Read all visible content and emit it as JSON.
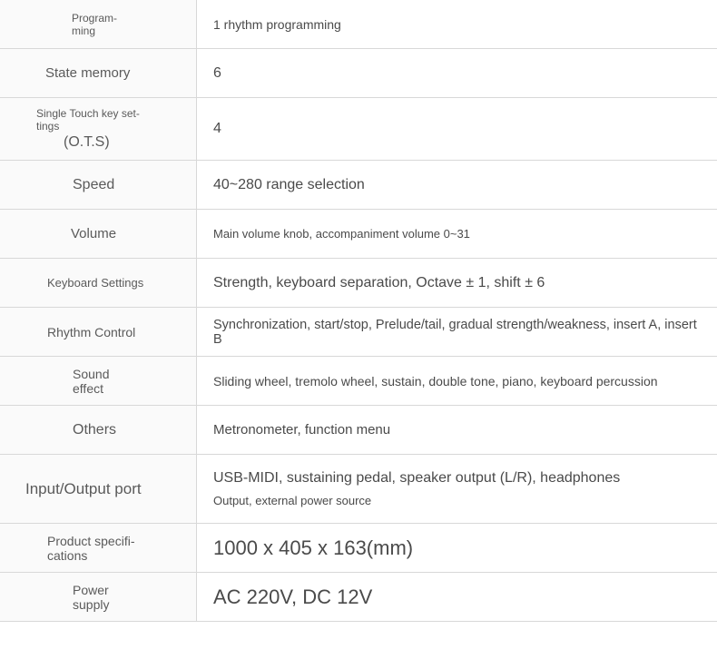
{
  "specs": {
    "programming": {
      "label": "Program-\nming",
      "value": "1 rhythm programming"
    },
    "state_memory": {
      "label": "State memory",
      "value": "6"
    },
    "ots": {
      "label_line1": "Single Touch key set-\ntings",
      "label_line2": "(O.T.S)",
      "value": "4"
    },
    "speed": {
      "label": "Speed",
      "value": "40~280 range selection"
    },
    "volume": {
      "label": "Volume",
      "value": "Main volume knob, accompaniment volume 0~31"
    },
    "keyboard_settings": {
      "label": "Keyboard Settings",
      "value": "Strength, keyboard separation, Octave ± 1, shift ± 6"
    },
    "rhythm_control": {
      "label": "Rhythm Control",
      "value": "Synchronization, start/stop, Prelude/tail, gradual strength/weakness, insert A, insert B"
    },
    "sound_effect": {
      "label": "Sound\neffect",
      "value": "Sliding wheel, tremolo wheel, sustain, double tone, piano, keyboard percussion"
    },
    "others": {
      "label": "Others",
      "value": "Metronometer, function menu"
    },
    "io_port": {
      "label": "Input/Output port",
      "value_line1": "USB-MIDI, sustaining pedal, speaker output  (L/R), headphones",
      "value_line2": "Output, external power source"
    },
    "dimensions": {
      "label": "Product specifi-\ncations",
      "value": "1000 x 405 x 163(mm)"
    },
    "power": {
      "label": "Power\nsupply",
      "value": "AC 220V, DC 12V"
    }
  },
  "colors": {
    "border": "#d8d8d8",
    "label_bg": "#fafafa",
    "label_text": "#5a5a5a",
    "value_text": "#4a4a4a"
  }
}
